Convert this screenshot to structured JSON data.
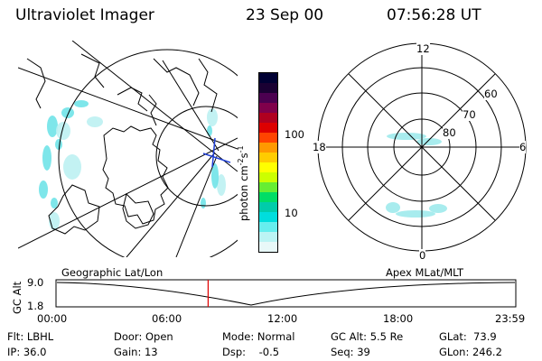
{
  "header": {
    "instrument": "Ultraviolet Imager",
    "date": "23 Sep 00",
    "time": "07:56:28 UT"
  },
  "colorbar": {
    "label": "photon cm",
    "label_exp1": "-2",
    "label_unit2": "s",
    "label_exp2": "-1",
    "ticks": [
      "100",
      "10"
    ],
    "colors": [
      "#000033",
      "#1a0033",
      "#4b0050",
      "#80004b",
      "#b00020",
      "#dd0000",
      "#ff4400",
      "#ff9900",
      "#ffcc00",
      "#ffff00",
      "#ccff00",
      "#66ee33",
      "#00dd66",
      "#00ccaa",
      "#00dddd",
      "#66eeee",
      "#bbf4f4",
      "#e8f8f8"
    ]
  },
  "polar_plot": {
    "labels": {
      "top": "12",
      "bottom": "0",
      "left": "18",
      "right": "6"
    },
    "rings": [
      "60",
      "70",
      "80"
    ]
  },
  "alt_panel": {
    "left_title": "Geographic Lat/Lon",
    "right_title": "Apex MLat/MLT",
    "ylabel": "GC Alt",
    "y_top": "9.0",
    "y_bottom": "1.8",
    "x_ticks": [
      "00:00",
      "06:00",
      "12:00",
      "18:00",
      "23:59"
    ],
    "marker_hours": 7.94
  },
  "info": {
    "row1": [
      {
        "label": "Flt: LBHL"
      },
      {
        "label": "Door: Open"
      },
      {
        "label": "Mode: Normal"
      },
      {
        "label": "GC Alt: 5.5 Re"
      },
      {
        "label": "GLat:  73.9"
      }
    ],
    "row2": [
      {
        "label": "IP: 36.0"
      },
      {
        "label": "Gain: 13"
      },
      {
        "label": "Dsp:    -0.5"
      },
      {
        "label": "Seq: 39"
      },
      {
        "label": "GLon: 246.2"
      }
    ]
  }
}
